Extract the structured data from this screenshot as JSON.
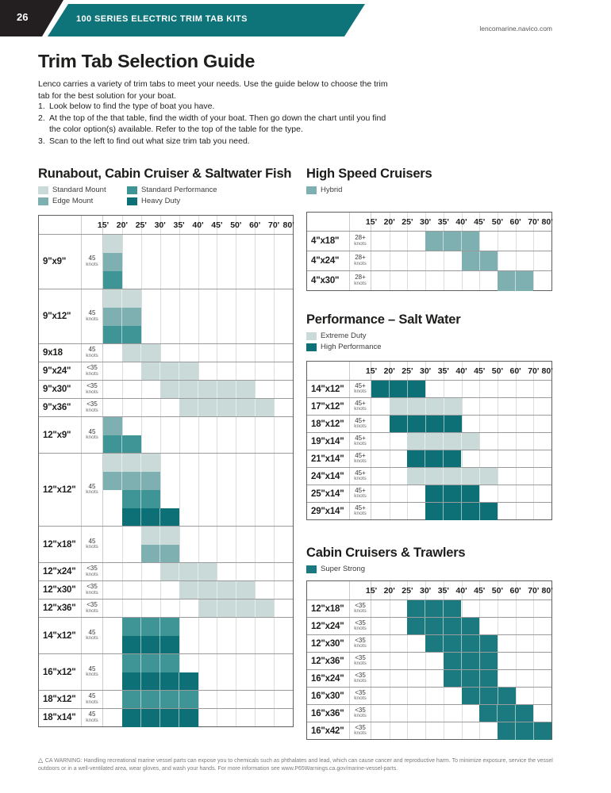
{
  "header": {
    "page_number": "26",
    "kicker": "100 SERIES ELECTRIC TRIM TAB KITS",
    "website": "lencomarine.navico.com"
  },
  "intro": {
    "title": "Trim Tab Selection Guide",
    "lead": "Lenco carries a variety of trim tabs to meet your needs. Use the guide below to choose the trim tab for the best solution for your boat.",
    "steps": [
      {
        "num": "1.",
        "text": "Look below to find the type of boat you have."
      },
      {
        "num": "2.",
        "text": "At the top of the that table, find the width of your boat. Then go down the chart until you find the color option(s) available. Refer to the top of the table for the type."
      },
      {
        "num": "3.",
        "text": "Scan to the left to find out what size trim tab you need."
      }
    ]
  },
  "colors": {
    "standard_mount": "#c9dad8",
    "edge_mount": "#7fb0b1",
    "standard_performance": "#3f9496",
    "heavy_duty": "#0c7076",
    "hybrid": "#7fb0b1",
    "extreme_duty": "#c9dad8",
    "high_performance": "#0c7076",
    "super_strong": "#1a7a80",
    "header_teal": "#0e7479"
  },
  "speed_labels": [
    "15'",
    "20'",
    "25'",
    "30'",
    "35'",
    "40'",
    "45'",
    "50'",
    "60'",
    "70'",
    "80'"
  ],
  "knots_unit": "knots",
  "tables": [
    {
      "id": "runabout",
      "column": "left",
      "title": "Runabout, Cabin Cruiser & Saltwater Fish",
      "legend_cols": 2,
      "legend": [
        {
          "label": "Standard Mount",
          "color_key": "standard_mount"
        },
        {
          "label": "Standard Performance",
          "color_key": "standard_performance"
        },
        {
          "label": "Edge Mount",
          "color_key": "edge_mount"
        },
        {
          "label": "Heavy Duty",
          "color_key": "heavy_duty"
        }
      ],
      "rows": [
        {
          "size": "9\"x9\"",
          "knots": "45",
          "bands": [
            {
              "type": "standard_mount",
              "from": "15'",
              "to": "20'"
            },
            {
              "type": "edge_mount",
              "from": "15'",
              "to": "20'"
            },
            {
              "type": "standard_performance",
              "from": "15'",
              "to": "20'"
            }
          ]
        },
        {
          "size": "9\"x12\"",
          "knots": "45",
          "bands": [
            {
              "type": "standard_mount",
              "from": "15'",
              "to": "25'"
            },
            {
              "type": "edge_mount",
              "from": "15'",
              "to": "25'"
            },
            {
              "type": "standard_performance",
              "from": "15'",
              "to": "25'"
            }
          ]
        },
        {
          "size": "9x18",
          "knots": "45",
          "bands": [
            {
              "type": "standard_mount",
              "from": "20'",
              "to": "30'"
            }
          ]
        },
        {
          "size": "9\"x24\"",
          "knots": "<35",
          "bands": [
            {
              "type": "standard_mount",
              "from": "25'",
              "to": "40'"
            }
          ]
        },
        {
          "size": "9\"x30\"",
          "knots": "<35",
          "bands": [
            {
              "type": "standard_mount",
              "from": "30'",
              "to": "60'"
            }
          ]
        },
        {
          "size": "9\"x36\"",
          "knots": "<35",
          "bands": [
            {
              "type": "standard_mount",
              "from": "35'",
              "to": "70'"
            }
          ]
        },
        {
          "size": "12\"x9\"",
          "knots": "45",
          "bands": [
            {
              "type": "edge_mount",
              "from": "15'",
              "to": "20'"
            },
            {
              "type": "standard_performance",
              "from": "15'",
              "to": "25'"
            }
          ]
        },
        {
          "size": "12\"x12\"",
          "knots": "45",
          "bands": [
            {
              "type": "standard_mount",
              "from": "15'",
              "to": "30'"
            },
            {
              "type": "edge_mount",
              "from": "15'",
              "to": "30'"
            },
            {
              "type": "standard_performance",
              "from": "20'",
              "to": "30'"
            },
            {
              "type": "heavy_duty",
              "from": "20'",
              "to": "35'"
            }
          ]
        },
        {
          "size": "12\"x18\"",
          "knots": "45",
          "bands": [
            {
              "type": "standard_mount",
              "from": "25'",
              "to": "35'"
            },
            {
              "type": "edge_mount",
              "from": "25'",
              "to": "35'"
            }
          ]
        },
        {
          "size": "12\"x24\"",
          "knots": "<35",
          "bands": [
            {
              "type": "standard_mount",
              "from": "30'",
              "to": "45'"
            }
          ]
        },
        {
          "size": "12\"x30\"",
          "knots": "<35",
          "bands": [
            {
              "type": "standard_mount",
              "from": "35'",
              "to": "60'"
            }
          ]
        },
        {
          "size": "12\"x36\"",
          "knots": "<35",
          "bands": [
            {
              "type": "standard_mount",
              "from": "40'",
              "to": "70'"
            }
          ]
        },
        {
          "size": "14\"x12\"",
          "knots": "45",
          "bands": [
            {
              "type": "standard_performance",
              "from": "20'",
              "to": "35'"
            },
            {
              "type": "heavy_duty",
              "from": "20'",
              "to": "35'"
            }
          ]
        },
        {
          "size": "16\"x12\"",
          "knots": "45",
          "bands": [
            {
              "type": "standard_performance",
              "from": "20'",
              "to": "35'"
            },
            {
              "type": "heavy_duty",
              "from": "20'",
              "to": "40'"
            }
          ]
        },
        {
          "size": "18\"x12\"",
          "knots": "45",
          "bands": [
            {
              "type": "standard_performance",
              "from": "20'",
              "to": "40'"
            }
          ]
        },
        {
          "size": "18\"x14\"",
          "knots": "45",
          "bands": [
            {
              "type": "heavy_duty",
              "from": "20'",
              "to": "40'"
            }
          ]
        }
      ]
    },
    {
      "id": "high-speed-cruisers",
      "column": "right",
      "title": "High Speed Cruisers",
      "legend_cols": 1,
      "legend": [
        {
          "label": "Hybrid",
          "color_key": "hybrid"
        }
      ],
      "rows": [
        {
          "size": "4\"x18\"",
          "knots": "28+",
          "bands": [
            {
              "type": "hybrid",
              "from": "30'",
              "to": "45'"
            }
          ]
        },
        {
          "size": "4\"x24\"",
          "knots": "28+",
          "bands": [
            {
              "type": "hybrid",
              "from": "40'",
              "to": "50'"
            }
          ]
        },
        {
          "size": "4\"x30\"",
          "knots": "28+",
          "bands": [
            {
              "type": "hybrid",
              "from": "50'",
              "to": "70'"
            }
          ]
        }
      ]
    },
    {
      "id": "performance-salt-water",
      "column": "right",
      "title": "Performance – Salt Water",
      "legend_cols": 1,
      "legend": [
        {
          "label": "Extreme Duty",
          "color_key": "extreme_duty"
        },
        {
          "label": "High Performance",
          "color_key": "high_performance"
        }
      ],
      "rows": [
        {
          "size": "14\"x12\"",
          "knots": "45+",
          "bands": [
            {
              "type": "high_performance",
              "from": "15'",
              "to": "30'"
            }
          ]
        },
        {
          "size": "17\"x12\"",
          "knots": "45+",
          "bands": [
            {
              "type": "extreme_duty",
              "from": "20'",
              "to": "40'"
            }
          ]
        },
        {
          "size": "18\"x12\"",
          "knots": "45+",
          "bands": [
            {
              "type": "high_performance",
              "from": "20'",
              "to": "40'"
            }
          ]
        },
        {
          "size": "19\"x14\"",
          "knots": "45+",
          "bands": [
            {
              "type": "extreme_duty",
              "from": "25'",
              "to": "45'"
            }
          ]
        },
        {
          "size": "21\"x14\"",
          "knots": "45+",
          "bands": [
            {
              "type": "high_performance",
              "from": "25'",
              "to": "40'"
            }
          ]
        },
        {
          "size": "24\"x14\"",
          "knots": "45+",
          "bands": [
            {
              "type": "extreme_duty",
              "from": "25'",
              "to": "50'"
            }
          ]
        },
        {
          "size": "25\"x14\"",
          "knots": "45+",
          "bands": [
            {
              "type": "high_performance",
              "from": "30'",
              "to": "45'"
            }
          ]
        },
        {
          "size": "29\"x14\"",
          "knots": "45+",
          "bands": [
            {
              "type": "high_performance",
              "from": "30'",
              "to": "50'"
            }
          ]
        }
      ]
    },
    {
      "id": "cabin-cruisers-trawlers",
      "column": "right",
      "title": "Cabin Cruisers & Trawlers",
      "legend_cols": 1,
      "legend": [
        {
          "label": "Super Strong",
          "color_key": "super_strong"
        }
      ],
      "rows": [
        {
          "size": "12\"x18\"",
          "knots": "<35",
          "bands": [
            {
              "type": "super_strong",
              "from": "25'",
              "to": "40'"
            }
          ]
        },
        {
          "size": "12\"x24\"",
          "knots": "<35",
          "bands": [
            {
              "type": "super_strong",
              "from": "25'",
              "to": "45'"
            }
          ]
        },
        {
          "size": "12\"x30\"",
          "knots": "<35",
          "bands": [
            {
              "type": "super_strong",
              "from": "30'",
              "to": "50'"
            }
          ]
        },
        {
          "size": "12\"x36\"",
          "knots": "<35",
          "bands": [
            {
              "type": "super_strong",
              "from": "35'",
              "to": "50'"
            }
          ]
        },
        {
          "size": "16\"x24\"",
          "knots": "<35",
          "bands": [
            {
              "type": "super_strong",
              "from": "35'",
              "to": "50'"
            }
          ]
        },
        {
          "size": "16\"x30\"",
          "knots": "<35",
          "bands": [
            {
              "type": "super_strong",
              "from": "40'",
              "to": "60'"
            }
          ]
        },
        {
          "size": "16\"x36\"",
          "knots": "<35",
          "bands": [
            {
              "type": "super_strong",
              "from": "45'",
              "to": "70'"
            }
          ]
        },
        {
          "size": "16\"x42\"",
          "knots": "<35",
          "bands": [
            {
              "type": "super_strong",
              "from": "50'",
              "to": "80'"
            }
          ]
        }
      ]
    }
  ],
  "footer": {
    "warning": "CA WARNING: Handling recreational marine vessel parts can expose you to chemicals such as phthalates and lead, which can cause cancer and reproductive harm. To minimize exposure, service the vessel outdoors or in a well-ventilated area, wear gloves, and wash your hands. For more information see www.P65Warnings.ca.gov/marine-vessel-parts."
  }
}
